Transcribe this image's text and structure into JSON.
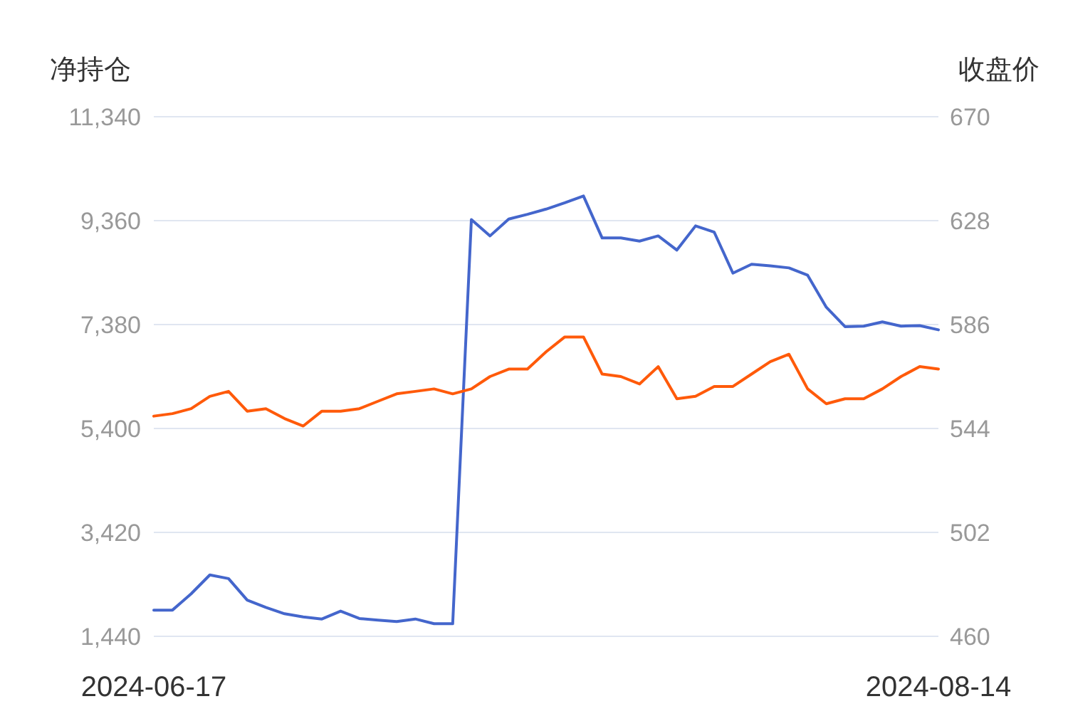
{
  "chart_data": {
    "type": "line",
    "ylabel": "净持仓",
    "y2label": "收盘价",
    "categories": [
      "2024-06-17",
      null,
      null,
      null,
      null,
      null,
      null,
      null,
      null,
      null,
      null,
      null,
      null,
      null,
      null,
      null,
      null,
      null,
      null,
      null,
      null,
      null,
      null,
      null,
      null,
      null,
      null,
      null,
      null,
      null,
      null,
      null,
      null,
      null,
      null,
      null,
      null,
      null,
      null,
      null,
      null,
      null,
      "2024-08-14"
    ],
    "series": [
      {
        "color": "#4466cc",
        "axis": "y",
        "values": [
          1940,
          1940,
          2250,
          2610,
          2540,
          2130,
          1990,
          1870,
          1810,
          1770,
          1920,
          1780,
          1750,
          1720,
          1770,
          1680,
          1680,
          9380,
          9070,
          9390,
          9480,
          9580,
          9700,
          9830,
          9030,
          9030,
          8970,
          9070,
          8800,
          9260,
          9140,
          8360,
          8530,
          8500,
          8460,
          8320,
          7710,
          7340,
          7350,
          7430,
          7350,
          7360,
          7280
        ]
      },
      {
        "color": "#ff5a0a",
        "axis": "y2",
        "values": [
          549,
          550,
          552,
          557,
          559,
          551,
          552,
          548,
          545,
          551,
          551,
          552,
          555,
          558,
          559,
          560,
          558,
          560,
          565,
          568,
          568,
          575,
          581,
          581,
          566,
          565,
          562,
          569,
          556,
          557,
          561,
          561,
          566,
          571,
          574,
          560,
          554,
          556,
          556,
          560,
          565,
          569,
          568
        ]
      }
    ],
    "ylim": [
      1440,
      11340
    ],
    "yticks": [
      {
        "value": 1440,
        "label": "1,440"
      },
      {
        "value": 3420,
        "label": "3,420"
      },
      {
        "value": 5400,
        "label": "5,400"
      },
      {
        "value": 7380,
        "label": "7,380"
      },
      {
        "value": 9360,
        "label": "9,360"
      },
      {
        "value": 11340,
        "label": "11,340"
      }
    ],
    "y2lim": [
      460,
      670
    ],
    "y2ticks": [
      460,
      502,
      544,
      586,
      628,
      670
    ],
    "grid": "y"
  }
}
